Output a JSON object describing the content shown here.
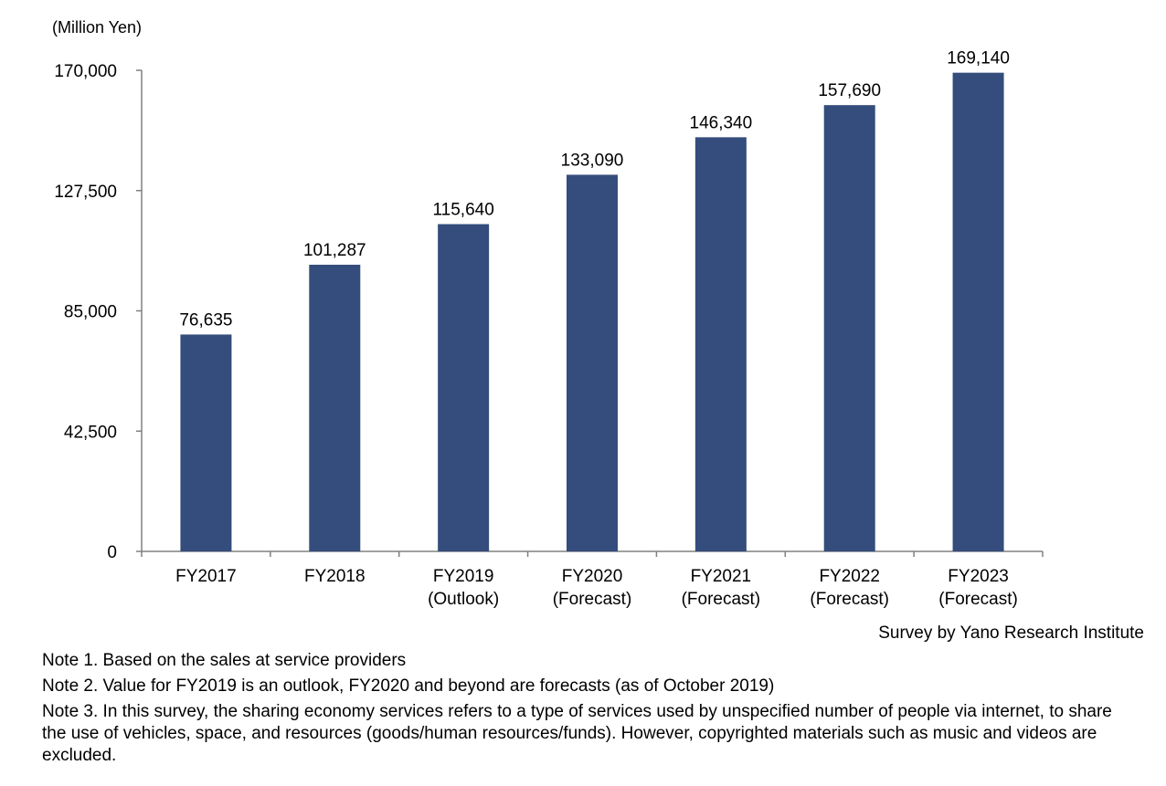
{
  "chart_data": {
    "type": "bar",
    "unit_label": "(Million Yen)",
    "categories": [
      [
        "FY2017"
      ],
      [
        "FY2018"
      ],
      [
        "FY2019",
        "(Outlook)"
      ],
      [
        "FY2020",
        "(Forecast)"
      ],
      [
        "FY2021",
        "(Forecast)"
      ],
      [
        "FY2022",
        "(Forecast)"
      ],
      [
        "FY2023",
        "(Forecast)"
      ]
    ],
    "values": [
      76635,
      101287,
      115640,
      133090,
      146340,
      157690,
      169140
    ],
    "value_labels": [
      "76,635",
      "101,287",
      "115,640",
      "133,090",
      "146,340",
      "157,690",
      "169,140"
    ],
    "yticks": [
      0,
      42500,
      85000,
      127500,
      170000
    ],
    "ytick_labels": [
      "0",
      "42,500",
      "85,000",
      "127,500",
      "170,000"
    ],
    "ylim": [
      0,
      170000
    ],
    "bar_color": "#344d7c",
    "axis_color": "#808080",
    "grid": false,
    "legend": false
  },
  "source": "Survey by Yano Research Institute",
  "notes": [
    "Note 1. Based on the sales at service providers",
    "Note 2. Value for FY2019 is an outlook, FY2020 and beyond are forecasts (as of October 2019)",
    "Note 3. In this survey, the sharing economy services refers to a type of services used by unspecified number of people via internet, to share the use of vehicles, space, and resources (goods/human resources/funds). However, copyrighted materials such as music and videos are excluded."
  ]
}
